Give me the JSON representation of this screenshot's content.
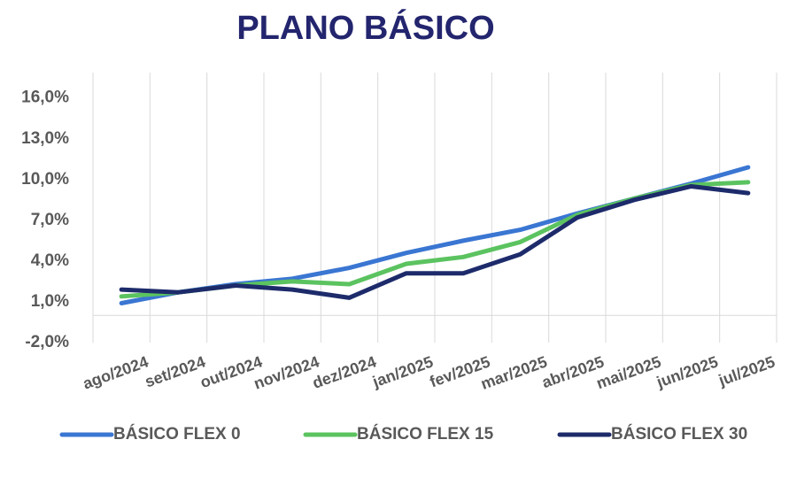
{
  "chart_data": {
    "type": "line",
    "title": "PLANO BÁSICO",
    "categories": [
      "ago/2024",
      "set/2024",
      "out/2024",
      "nov/2024",
      "dez/2024",
      "jan/2025",
      "fev/2025",
      "mar/2025",
      "abr/2025",
      "mai/2025",
      "jun/2025",
      "jul/2025"
    ],
    "series": [
      {
        "name": "BÁSICO FLEX 0",
        "color": "#3a76d2",
        "values": [
          0.9,
          1.7,
          2.3,
          2.7,
          3.5,
          4.6,
          5.5,
          6.3,
          7.5,
          8.6,
          9.7,
          10.9
        ]
      },
      {
        "name": "BÁSICO FLEX 15",
        "color": "#5bc35f",
        "values": [
          1.4,
          1.7,
          2.2,
          2.5,
          2.3,
          3.8,
          4.3,
          5.4,
          7.4,
          8.6,
          9.6,
          9.8
        ]
      },
      {
        "name": "BÁSICO FLEX 30",
        "color": "#1d2b6b",
        "values": [
          1.9,
          1.7,
          2.2,
          1.9,
          1.3,
          3.1,
          3.1,
          4.5,
          7.2,
          8.5,
          9.5,
          9.0
        ]
      }
    ],
    "ylim": [
      -2,
      18
    ],
    "yticks": [
      {
        "value": -2,
        "label": "-2,0%"
      },
      {
        "value": 1,
        "label": "1,0%"
      },
      {
        "value": 4,
        "label": "4,0%"
      },
      {
        "value": 7,
        "label": "7,0%"
      },
      {
        "value": 10,
        "label": "10,0%"
      },
      {
        "value": 13,
        "label": "13,0%"
      },
      {
        "value": 16,
        "label": "16,0%"
      }
    ],
    "legend": "bottom"
  }
}
